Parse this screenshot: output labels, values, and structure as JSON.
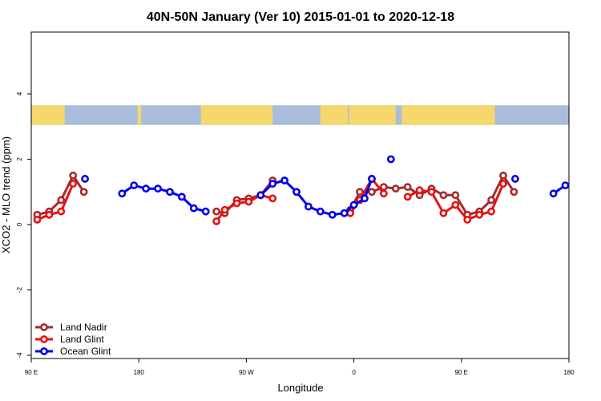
{
  "chart_data": {
    "type": "line",
    "title": "40N-50N January (Ver 10)   2015-01-01 to 2020-12-18",
    "xlabel": "Longitude",
    "ylabel": "XCO2 - MLO trend (ppm)",
    "xlim": [
      90,
      540
    ],
    "ylim": [
      -4,
      6
    ],
    "x_ticks": [
      {
        "value": 90,
        "label": "90 E"
      },
      {
        "value": 180,
        "label": "180"
      },
      {
        "value": 270,
        "label": "90 W"
      },
      {
        "value": 360,
        "label": "0"
      },
      {
        "value": 450,
        "label": "90 E"
      },
      {
        "value": 540,
        "label": "180"
      }
    ],
    "y_ticks": [
      {
        "value": -4,
        "label": "-4"
      },
      {
        "value": -2,
        "label": "-2"
      },
      {
        "value": 0,
        "label": "0"
      },
      {
        "value": 2,
        "label": "2"
      },
      {
        "value": 4,
        "label": "4"
      }
    ],
    "map_strip": {
      "y_range": [
        3.05,
        3.65
      ],
      "land_color": "#f5d76e",
      "ocean_color": "#a7bddb"
    },
    "legend_position": "bottom-left",
    "series": [
      {
        "name": "Land Nadir",
        "color": "#a52a2a",
        "segments": [
          [
            [
              95,
              0.3
            ],
            [
              105,
              0.4
            ],
            [
              115,
              0.75
            ],
            [
              125,
              1.5
            ],
            [
              134,
              1.0
            ]
          ],
          [
            [
              245,
              0.4
            ],
            [
              252,
              0.35
            ],
            [
              262,
              0.75
            ],
            [
              272,
              0.8
            ],
            [
              282,
              0.9
            ],
            [
              292,
              1.35
            ]
          ],
          [
            [
              357,
              0.45
            ],
            [
              365,
              1.0
            ],
            [
              375,
              1.0
            ],
            [
              385,
              1.15
            ],
            [
              395,
              1.1
            ],
            [
              405,
              1.15
            ],
            [
              415,
              0.9
            ],
            [
              425,
              1.1
            ],
            [
              435,
              0.9
            ],
            [
              445,
              0.9
            ],
            [
              455,
              0.3
            ],
            [
              465,
              0.4
            ],
            [
              475,
              0.75
            ],
            [
              485,
              1.5
            ],
            [
              494,
              1.0
            ]
          ]
        ]
      },
      {
        "name": "Land Glint",
        "color": "#e8100f",
        "segments": [
          [
            [
              95,
              0.15
            ],
            [
              105,
              0.3
            ],
            [
              115,
              0.4
            ],
            [
              125,
              1.25
            ]
          ],
          [
            [
              245,
              0.1
            ],
            [
              252,
              0.45
            ],
            [
              262,
              0.65
            ],
            [
              272,
              0.7
            ],
            [
              282,
              0.9
            ],
            [
              292,
              0.8
            ]
          ],
          [
            [
              357,
              0.35
            ],
            [
              365,
              0.75
            ],
            [
              375,
              1.4
            ],
            [
              385,
              0.95
            ]
          ],
          [
            [
              405,
              0.85
            ],
            [
              415,
              1.05
            ],
            [
              425,
              1.0
            ],
            [
              435,
              0.35
            ],
            [
              445,
              0.6
            ],
            [
              455,
              0.15
            ],
            [
              465,
              0.3
            ],
            [
              475,
              0.4
            ],
            [
              485,
              1.25
            ]
          ]
        ]
      },
      {
        "name": "Ocean Glint",
        "color": "#0000ee",
        "segments": [
          [
            [
              135,
              1.4
            ]
          ],
          [
            [
              166,
              0.95
            ],
            [
              176,
              1.2
            ],
            [
              186,
              1.1
            ],
            [
              196,
              1.1
            ],
            [
              206,
              1.0
            ],
            [
              216,
              0.85
            ],
            [
              226,
              0.5
            ],
            [
              236,
              0.4
            ]
          ],
          [
            [
              282,
              0.9
            ],
            [
              292,
              1.25
            ],
            [
              302,
              1.35
            ],
            [
              312,
              1.0
            ],
            [
              322,
              0.55
            ],
            [
              332,
              0.4
            ],
            [
              342,
              0.3
            ],
            [
              352,
              0.35
            ],
            [
              360,
              0.6
            ],
            [
              369,
              0.8
            ],
            [
              375,
              1.4
            ]
          ],
          [
            [
              391,
              2.0
            ]
          ],
          [
            [
              495,
              1.4
            ]
          ],
          [
            [
              527,
              0.95
            ],
            [
              537,
              1.2
            ]
          ]
        ]
      }
    ]
  }
}
